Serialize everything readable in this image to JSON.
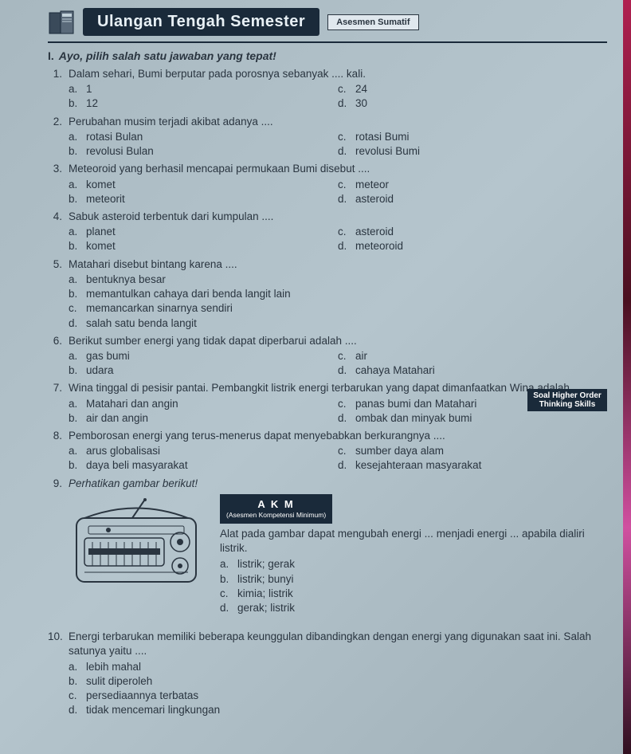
{
  "header": {
    "title": "Ulangan Tengah Semester",
    "subtitle": "Asesmen Sumatif"
  },
  "section": {
    "marker": "I.",
    "intro": "Ayo, pilih salah satu jawaban yang tepat!"
  },
  "q": [
    {
      "n": "1.",
      "text": "Dalam sehari, Bumi berputar pada porosnya sebanyak .... kali.",
      "opts": {
        "a": "1",
        "b": "12",
        "c": "24",
        "d": "30"
      },
      "layout": "2col"
    },
    {
      "n": "2.",
      "text": "Perubahan musim terjadi akibat adanya ....",
      "opts": {
        "a": "rotasi Bulan",
        "b": "revolusi Bulan",
        "c": "rotasi Bumi",
        "d": "revolusi Bumi"
      },
      "layout": "2col"
    },
    {
      "n": "3.",
      "text": "Meteoroid yang berhasil mencapai permukaan Bumi disebut ....",
      "opts": {
        "a": "komet",
        "b": "meteorit",
        "c": "meteor",
        "d": "asteroid"
      },
      "layout": "2col"
    },
    {
      "n": "4.",
      "text": "Sabuk asteroid terbentuk dari kumpulan ....",
      "opts": {
        "a": "planet",
        "b": "komet",
        "c": "asteroid",
        "d": "meteoroid"
      },
      "layout": "2col"
    },
    {
      "n": "5.",
      "text": "Matahari disebut bintang karena ....",
      "opts": {
        "a": "bentuknya besar",
        "b": "memantulkan cahaya dari benda langit lain",
        "c": "memancarkan sinarnya sendiri",
        "d": "salah satu benda langit"
      },
      "layout": "1col"
    },
    {
      "n": "6.",
      "text": "Berikut sumber energi yang tidak dapat diperbarui adalah ....",
      "opts": {
        "a": "gas bumi",
        "b": "udara",
        "c": "air",
        "d": "cahaya Matahari"
      },
      "layout": "2col"
    },
    {
      "n": "7.",
      "text": "Wina tinggal di pesisir pantai. Pembangkit listrik energi terbarukan yang dapat dimanfaatkan Wina adalah ....",
      "opts": {
        "a": "Matahari dan angin",
        "b": "air dan angin",
        "c": "panas bumi dan Matahari",
        "d": "ombak dan minyak bumi"
      },
      "layout": "2col",
      "badge": {
        "line1": "Soal Higher Order",
        "line2": "Thinking Skills"
      }
    },
    {
      "n": "8.",
      "text": "Pemborosan energi yang terus-menerus dapat menyebabkan berkurangnya ....",
      "opts": {
        "a": "arus globalisasi",
        "b": "daya beli masyarakat",
        "c": "sumber daya alam",
        "d": "kesejahteraan masyarakat"
      },
      "layout": "2col"
    },
    {
      "n": "9.",
      "text": "Perhatikan gambar berikut!",
      "akm": {
        "title": "A K M",
        "sub": "(Asesmen Kompetensi Minimum)"
      },
      "desc": "Alat pada gambar dapat mengubah energi ... menjadi energi ... apabila dialiri listrik.",
      "opts": {
        "a": "listrik; gerak",
        "b": "listrik; bunyi",
        "c": "kimia; listrik",
        "d": "gerak; listrik"
      }
    },
    {
      "n": "10.",
      "text": "Energi terbarukan memiliki beberapa keunggulan dibandingkan dengan energi yang digunakan saat ini. Salah satunya yaitu ....",
      "opts": {
        "a": "lebih mahal",
        "b": "sulit diperoleh",
        "c": "persediaannya terbatas",
        "d": "tidak mencemari lingkungan"
      },
      "layout": "1col"
    }
  ],
  "colors": {
    "banner_bg": "#1a2a3a",
    "banner_fg": "#e8f0f5",
    "text": "#2a3540",
    "page_bg": "#b0c0c8"
  }
}
